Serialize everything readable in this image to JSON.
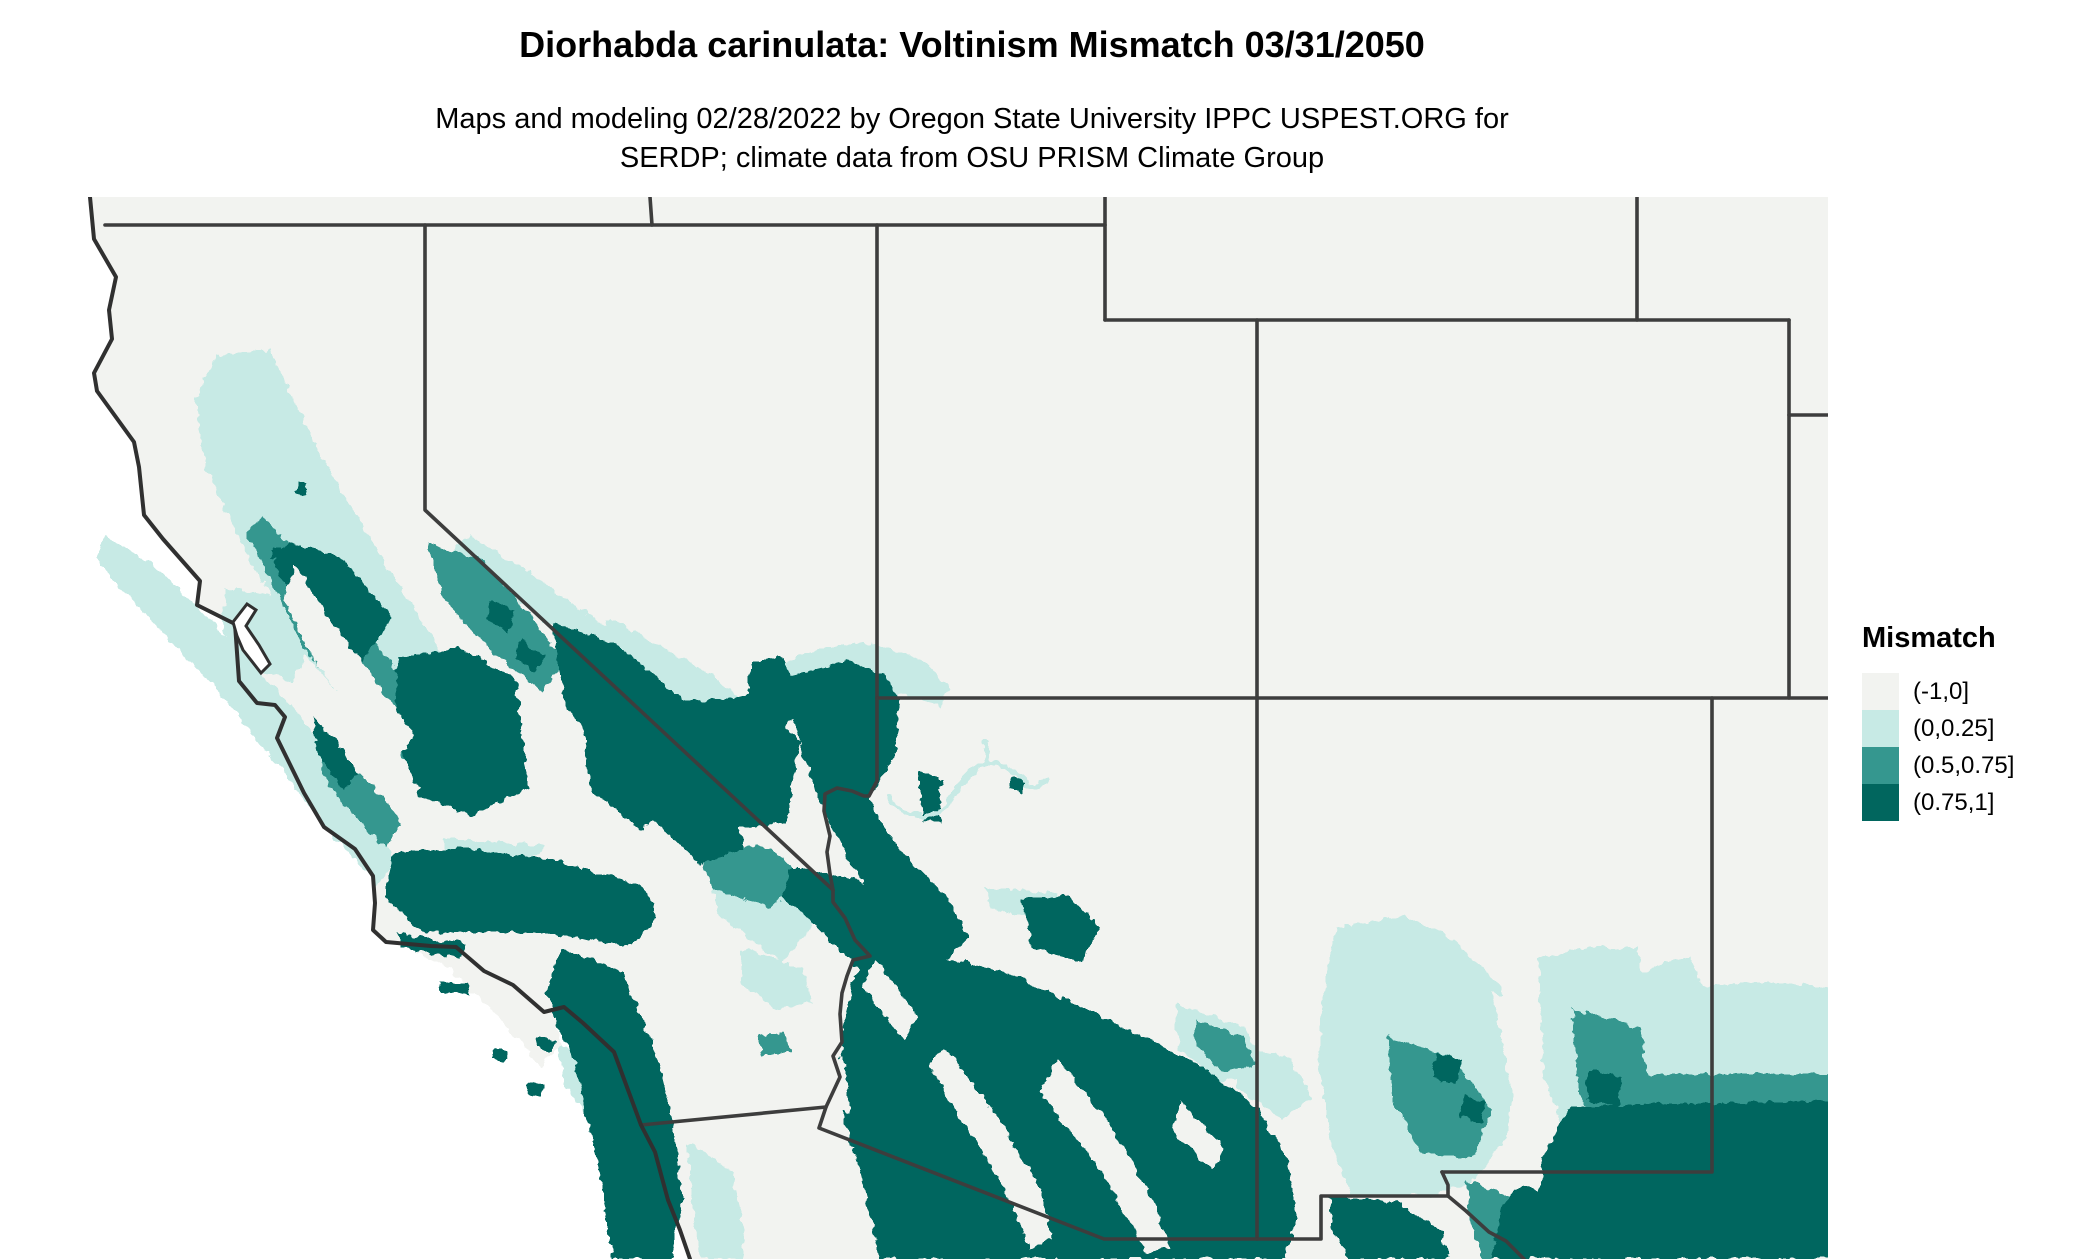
{
  "header": {
    "title": "Diorhabda carinulata: Voltinism Mismatch 03/31/2050",
    "subtitle_line1": "Maps and modeling 02/28/2022 by Oregon State University IPPC USPEST.ORG for",
    "subtitle_line2": "SERDP; climate data from OSU PRISM Climate Group"
  },
  "legend": {
    "title": "Mismatch",
    "items": [
      {
        "label": "(-1,0]",
        "color": "#f2f3f0"
      },
      {
        "label": "(0,0.25]",
        "color": "#c7eae5"
      },
      {
        "label": "(0.5,0.75]",
        "color": "#35978f"
      },
      {
        "label": "(0.75,1]",
        "color": "#01665e"
      }
    ]
  },
  "map": {
    "palette": {
      "ocean": "#ffffff",
      "land": "#f2f3f0",
      "border": "#3d3d3d",
      "coast": "#303030",
      "raster_light": "#c7eae5",
      "raster_mid": "#35978f",
      "raster_dark": "#01665e"
    }
  }
}
